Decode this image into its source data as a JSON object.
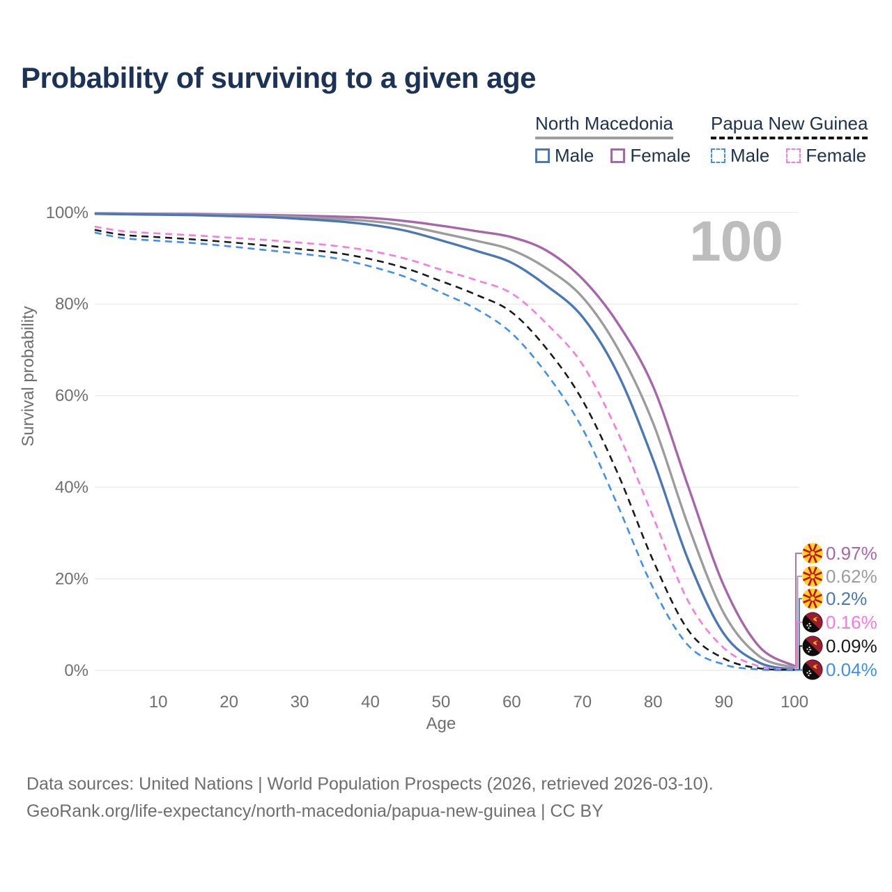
{
  "title": "Probability of surviving to a given age",
  "watermark": "100",
  "legend": {
    "groups": [
      {
        "name": "North Macedonia",
        "underline": "solid",
        "items": [
          {
            "label": "Male",
            "style": "solid",
            "color": "#4a77b6"
          },
          {
            "label": "Female",
            "style": "solid",
            "color": "#a765ab"
          }
        ]
      },
      {
        "name": "Papua New Guinea",
        "underline": "dashed",
        "items": [
          {
            "label": "Male",
            "style": "dashed",
            "color": "#3d8ff2"
          },
          {
            "label": "Female",
            "style": "dashed",
            "color": "#fb78de"
          }
        ]
      }
    ]
  },
  "chart_data": {
    "type": "line",
    "title": "Probability of surviving to a given age",
    "xlabel": "Age",
    "ylabel": "Survival probability",
    "xlim": [
      1,
      100
    ],
    "ylim": [
      0,
      100
    ],
    "grid": true,
    "x_ticks": [
      10,
      20,
      30,
      40,
      50,
      60,
      70,
      80,
      90,
      100
    ],
    "y_ticks": [
      "0%",
      "20%",
      "40%",
      "60%",
      "80%",
      "100%"
    ],
    "y_gridlines": [
      0,
      20,
      40,
      60,
      80,
      100
    ],
    "x": [
      1,
      5,
      10,
      15,
      20,
      25,
      30,
      35,
      40,
      45,
      50,
      55,
      60,
      65,
      70,
      75,
      80,
      85,
      90,
      95,
      100
    ],
    "series": [
      {
        "name": "North Macedonia Female",
        "flag": "mk",
        "style": "solid",
        "color": "#a765ab",
        "end_label": "0.97%",
        "values": [
          99.8,
          99.75,
          99.7,
          99.65,
          99.55,
          99.45,
          99.3,
          99.1,
          98.8,
          98.1,
          97.1,
          95.9,
          94.6,
          91.6,
          85.5,
          75.8,
          62.0,
          40.0,
          18.5,
          5.2,
          0.97
        ]
      },
      {
        "name": "North Macedonia All",
        "flag": "mk",
        "style": "solid",
        "color": "#9c9c9c",
        "end_label": "0.62%",
        "values": [
          99.75,
          99.7,
          99.6,
          99.5,
          99.4,
          99.2,
          99.0,
          98.6,
          98.1,
          97.1,
          95.5,
          93.8,
          91.8,
          87.7,
          81.5,
          70.3,
          54.0,
          31.5,
          12.5,
          3.1,
          0.62
        ]
      },
      {
        "name": "North Macedonia Male",
        "flag": "mk",
        "style": "solid",
        "color": "#4a77b6",
        "end_label": "0.2%",
        "values": [
          99.7,
          99.6,
          99.5,
          99.4,
          99.2,
          99.0,
          98.6,
          98.1,
          97.3,
          96.0,
          93.9,
          91.6,
          89.0,
          83.9,
          77.2,
          64.8,
          46.0,
          24.0,
          8.0,
          1.7,
          0.2
        ]
      },
      {
        "name": "Papua New Guinea Female",
        "flag": "pg",
        "style": "dashed",
        "color": "#fb78de",
        "end_label": "0.16%",
        "values": [
          96.9,
          95.9,
          95.4,
          95.0,
          94.5,
          94.0,
          93.4,
          92.7,
          91.6,
          89.9,
          87.5,
          85.2,
          82.3,
          75.6,
          66.8,
          52.0,
          33.5,
          15.0,
          4.9,
          0.9,
          0.16
        ]
      },
      {
        "name": "Papua New Guinea All",
        "flag": "pg",
        "style": "dashed",
        "color": "#1a1a1a",
        "end_label": "0.09%",
        "values": [
          96.2,
          95.1,
          94.6,
          94.1,
          93.5,
          92.8,
          92.0,
          91.2,
          89.8,
          87.8,
          85.0,
          82.0,
          78.2,
          70.1,
          59.0,
          43.0,
          24.0,
          8.7,
          2.6,
          0.45,
          0.09
        ]
      },
      {
        "name": "Papua New Guinea Male",
        "flag": "pg",
        "style": "dashed",
        "color": "#3d8ff2",
        "end_label": "0.04%",
        "values": [
          95.6,
          94.4,
          93.8,
          93.3,
          92.6,
          91.8,
          91.0,
          90.0,
          88.2,
          85.9,
          82.5,
          78.9,
          73.6,
          64.6,
          52.8,
          36.0,
          18.0,
          5.4,
          1.3,
          0.2,
          0.04
        ]
      }
    ],
    "colors": {
      "grid": "#ececec",
      "axis_text": "#6f6f6f",
      "watermark": "#bdbdbd",
      "mk_red": "#d20000",
      "mk_yellow": "#ffd520",
      "pg_red": "#9a1c2e",
      "pg_black": "#0d0d0d",
      "pg_yellow": "#f2b705"
    }
  },
  "footer": {
    "line1": "Data sources: United Nations | World Population Prospects (2026, retrieved 2026-03-10).",
    "line2": "GeoRank.org/life-expectancy/north-macedonia/papua-new-guinea | CC BY"
  }
}
